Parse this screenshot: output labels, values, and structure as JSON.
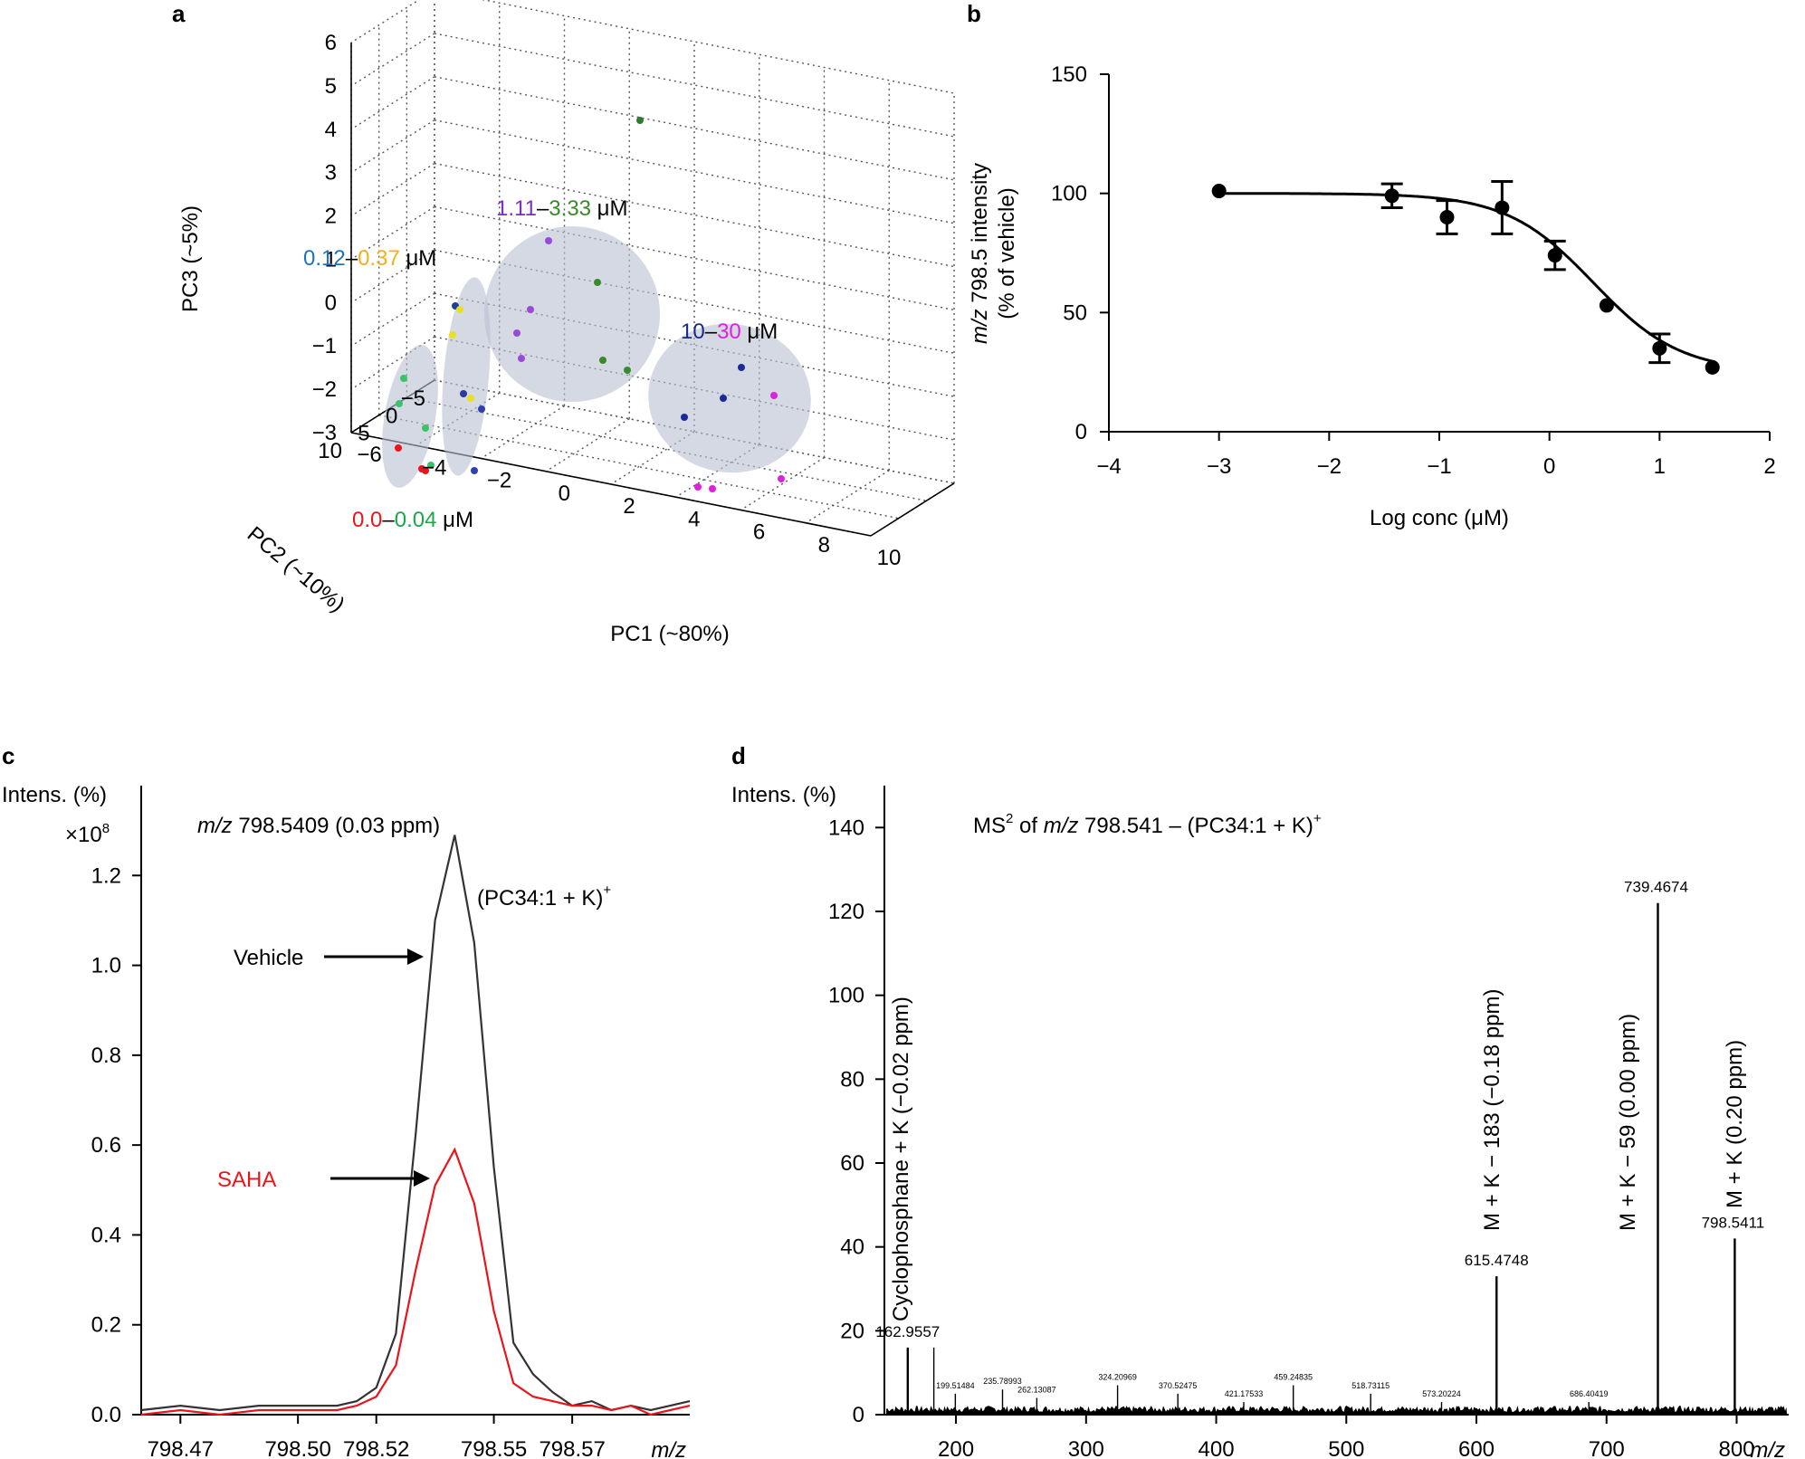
{
  "panels": {
    "a": {
      "letter": "a",
      "chart_data": {
        "type": "scatter",
        "title": "",
        "xlabel": "PC1 (~80%)",
        "ylabel": "PC2 (~10%)",
        "zlabel": "PC3 (~5%)",
        "x_ticks": [
          "−6",
          "−4",
          "−2",
          "0",
          "2",
          "4",
          "6",
          "8",
          "10"
        ],
        "y_ticks": [
          "10",
          "5",
          "0",
          "−5"
        ],
        "z_ticks": [
          "6",
          "5",
          "4",
          "3",
          "2",
          "1",
          "0",
          "−1",
          "−2",
          "−3"
        ],
        "group_labels": [
          {
            "part1": "0.0",
            "sep": "–",
            "part2": "0.04",
            "unit": " μM",
            "color1": "#e8161c",
            "color2": "#1aa84a"
          },
          {
            "part1": "0.12",
            "sep": "–",
            "part2": "0.37",
            "unit": " μM",
            "color1": "#1e73be",
            "color2": "#f2b01e"
          },
          {
            "part1": "1.11",
            "sep": "–",
            "part2": "3.33",
            "unit": " μM",
            "color1": "#7b2fbf",
            "color2": "#3a8a2a"
          },
          {
            "part1": "10",
            "sep": "–",
            "part2": "30",
            "unit": " μM",
            "color1": "#1a2a8a",
            "color2": "#e020e0"
          }
        ]
      }
    },
    "b": {
      "letter": "b",
      "chart_data": {
        "type": "scatter",
        "title": "",
        "xlabel": "Log conc (μM)",
        "ylabel_line1": "m/z 798.5 intensity",
        "ylabel_line2": "(% of vehicle)",
        "xlim": [
          -4,
          2
        ],
        "ylim": [
          0,
          150
        ],
        "x_ticks": [
          "−4",
          "−3",
          "−2",
          "−1",
          "0",
          "1",
          "2"
        ],
        "y_ticks": [
          "0",
          "50",
          "100",
          "150"
        ],
        "points": [
          {
            "x": -3.0,
            "y": 101,
            "err": 0
          },
          {
            "x": -1.43,
            "y": 99,
            "err": 5
          },
          {
            "x": -0.93,
            "y": 90,
            "err": 7
          },
          {
            "x": -0.43,
            "y": 94,
            "err": 11
          },
          {
            "x": 0.05,
            "y": 74,
            "err": 6
          },
          {
            "x": 0.52,
            "y": 53,
            "err": 0
          },
          {
            "x": 1.0,
            "y": 35,
            "err": 6
          },
          {
            "x": 1.48,
            "y": 27,
            "err": 0
          }
        ],
        "fit": {
          "top": 100,
          "bottom": 25,
          "log_ic50": 0.4,
          "hill": 1.1
        }
      }
    },
    "c": {
      "letter": "c",
      "chart_data": {
        "type": "line",
        "ylabel": "Intens. (%)",
        "y_multiplier": "×10",
        "y_multiplier_exp": "8",
        "xlabel": "m/z",
        "title_mz": "m/z",
        "title_rest": " 798.5409 (0.03 ppm)",
        "ion_label": "(PC34:1 + K)",
        "ion_sup": "+",
        "xlim": [
          798.46,
          798.6
        ],
        "ylim": [
          0,
          1.4
        ],
        "x_ticks": [
          "798.47",
          "798.50",
          "798.52",
          "798.55",
          "798.57"
        ],
        "y_ticks": [
          "0.0",
          "0.2",
          "0.4",
          "0.6",
          "0.8",
          "1.0",
          "1.2"
        ],
        "series": [
          {
            "name": "Vehicle",
            "color": "#333333",
            "x": [
              798.46,
              798.47,
              798.48,
              798.49,
              798.5,
              798.51,
              798.515,
              798.52,
              798.525,
              798.53,
              798.535,
              798.54,
              798.545,
              798.55,
              798.555,
              798.56,
              798.565,
              798.57,
              798.575,
              798.58,
              798.585,
              798.59,
              798.595,
              798.6
            ],
            "y": [
              0.01,
              0.02,
              0.01,
              0.02,
              0.02,
              0.02,
              0.03,
              0.06,
              0.18,
              0.62,
              1.1,
              1.29,
              1.05,
              0.55,
              0.16,
              0.09,
              0.05,
              0.02,
              0.03,
              0.01,
              0.02,
              0.01,
              0.02,
              0.03
            ]
          },
          {
            "name": "SAHA",
            "color": "#e8161c",
            "x": [
              798.46,
              798.47,
              798.48,
              798.49,
              798.5,
              798.51,
              798.515,
              798.52,
              798.525,
              798.53,
              798.535,
              798.54,
              798.545,
              798.55,
              798.555,
              798.56,
              798.565,
              798.57,
              798.575,
              798.58,
              798.585,
              798.59,
              798.595,
              798.6
            ],
            "y": [
              0.0,
              0.01,
              0.0,
              0.01,
              0.01,
              0.01,
              0.02,
              0.04,
              0.11,
              0.32,
              0.51,
              0.59,
              0.47,
              0.23,
              0.07,
              0.04,
              0.03,
              0.02,
              0.02,
              0.01,
              0.02,
              0.0,
              0.01,
              0.02
            ]
          }
        ]
      }
    },
    "d": {
      "letter": "d",
      "chart_data": {
        "type": "bar",
        "ylabel": "Intens. (%)",
        "xlabel": "m/z",
        "title_pre": "MS",
        "title_sup": "2",
        "title_mid": " of ",
        "title_mz": "m/z",
        "title_rest": " 798.541 – (PC34:1 + K)",
        "title_sup2": "+",
        "xlim": [
          145,
          840
        ],
        "ylim": [
          0,
          150
        ],
        "x_ticks": [
          "200",
          "300",
          "400",
          "500",
          "600",
          "700",
          "800"
        ],
        "y_ticks": [
          "0",
          "20",
          "40",
          "60",
          "80",
          "100",
          "120",
          "140"
        ],
        "peaks": [
          {
            "x": 162.9557,
            "y": 16,
            "label": "162.9557",
            "big": true
          },
          {
            "x": 183.0,
            "y": 16,
            "label": "",
            "big": false
          },
          {
            "x": 199.51484,
            "y": 5,
            "label": "199.51484",
            "big": false
          },
          {
            "x": 235.78993,
            "y": 6,
            "label": "235.78993",
            "big": false
          },
          {
            "x": 262.13087,
            "y": 4,
            "label": "262.13087",
            "big": false
          },
          {
            "x": 324.20969,
            "y": 7,
            "label": "324.20969",
            "big": false
          },
          {
            "x": 370.52475,
            "y": 5,
            "label": "370.52475",
            "big": false
          },
          {
            "x": 421.17533,
            "y": 3,
            "label": "421.17533",
            "big": false
          },
          {
            "x": 459.24835,
            "y": 7,
            "label": "459.24835",
            "big": false
          },
          {
            "x": 518.73115,
            "y": 5,
            "label": "518.73115",
            "big": false
          },
          {
            "x": 573.20224,
            "y": 3,
            "label": "573.20224",
            "big": false
          },
          {
            "x": 615.4748,
            "y": 33,
            "label": "615.4748",
            "big": true
          },
          {
            "x": 686.40419,
            "y": 3,
            "label": "686.40419",
            "big": false
          },
          {
            "x": 739.4674,
            "y": 122,
            "label": "739.4674",
            "big": true
          },
          {
            "x": 798.5411,
            "y": 42,
            "label": "798.5411",
            "big": true
          }
        ],
        "annotations": [
          "Cyclophosphane + K (−0.02 ppm)",
          "M + K − 183 (−0.18 ppm)",
          "M + K − 59 (0.00 ppm)",
          "M + K (0.20 ppm)"
        ]
      }
    }
  }
}
